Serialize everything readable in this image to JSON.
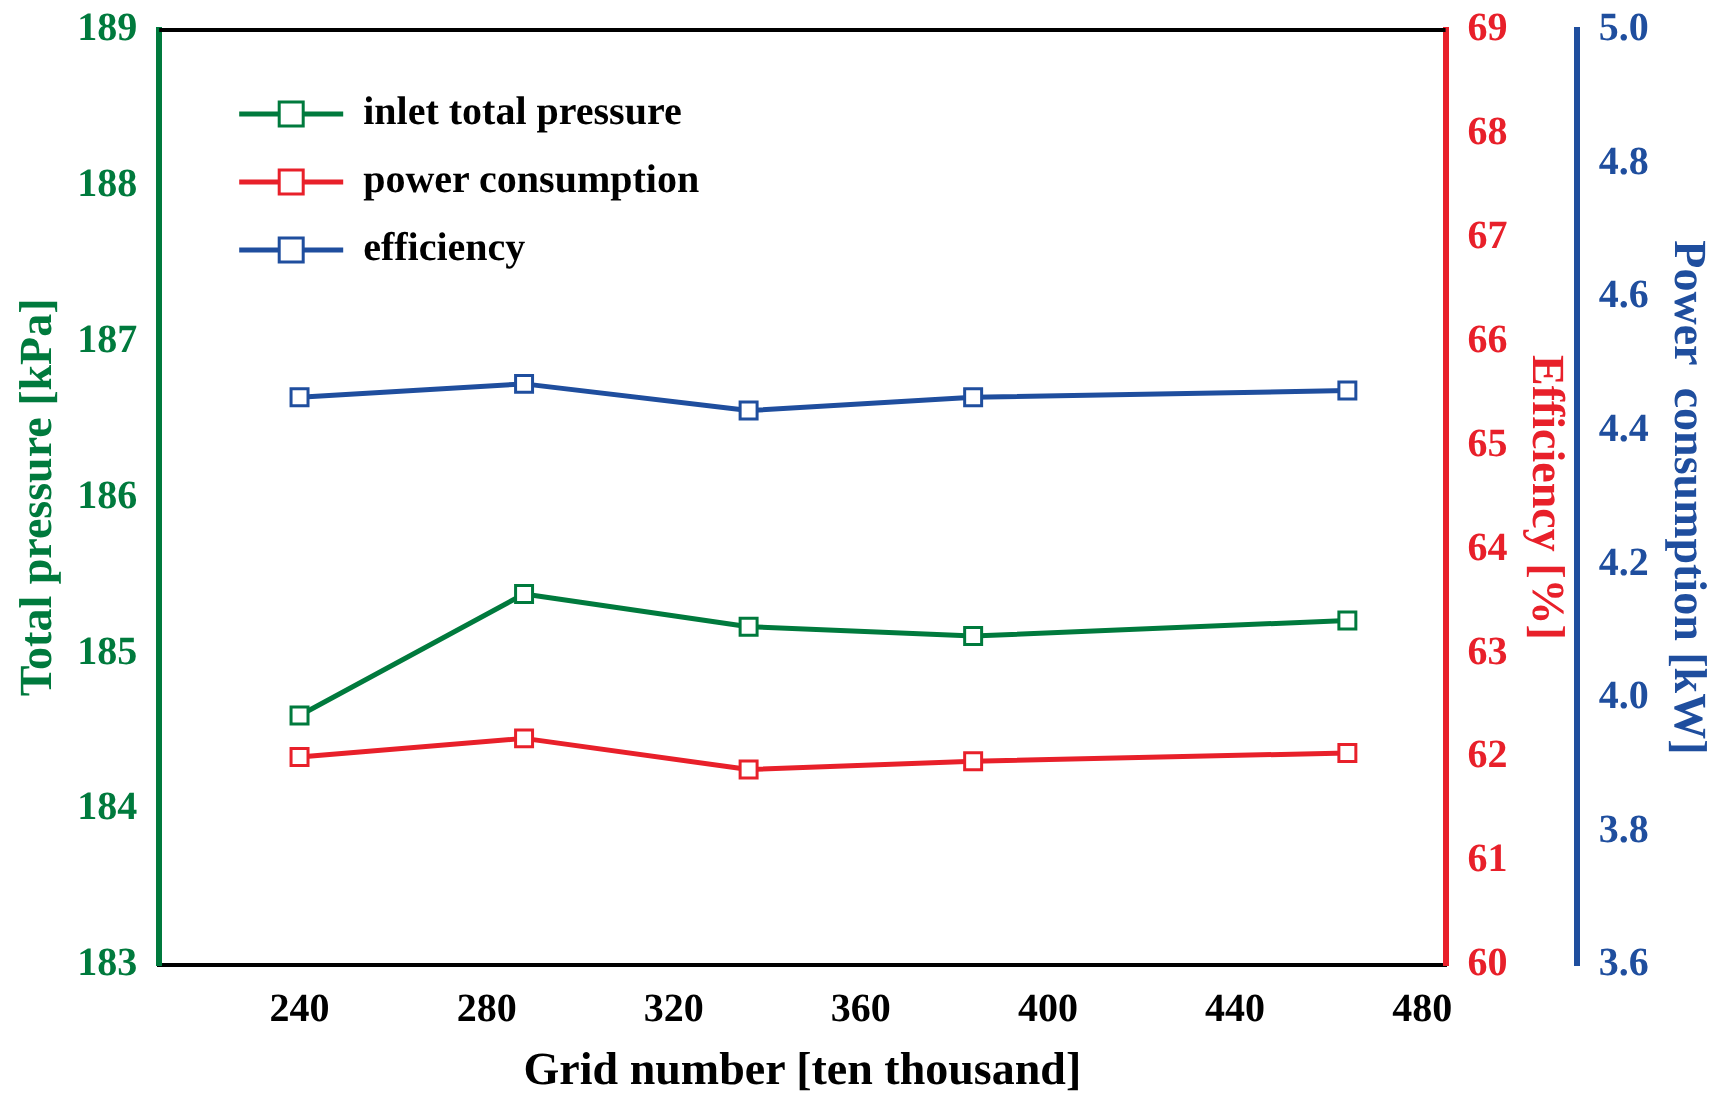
{
  "chart_data": {
    "type": "line",
    "xlabel": "Grid number [ten thousand]",
    "ylabel": "Total pressure [kPa]",
    "y2label": "Efficiency [%]",
    "y3label": "Power  consumption [kW]",
    "x": [
      240,
      288,
      336,
      384,
      464
    ],
    "xlim": [
      210,
      485
    ],
    "xticks": [
      240,
      280,
      320,
      360,
      400,
      440,
      480
    ],
    "ylim": [
      183,
      189
    ],
    "yticks": [
      183,
      184,
      185,
      186,
      187,
      188,
      189
    ],
    "y2lim": [
      60,
      69
    ],
    "y2ticks": [
      60,
      61,
      62,
      63,
      64,
      65,
      66,
      67,
      68,
      69
    ],
    "y3lim": [
      3.6,
      5.0
    ],
    "y3ticks": [
      3.6,
      3.8,
      {
        "value": 4,
        "label": "4.0"
      },
      4.2,
      4.4,
      4.6,
      4.8,
      {
        "value": 5,
        "label": "5.0"
      }
    ],
    "series": [
      {
        "name": "inlet total pressure",
        "color": "#007a3d",
        "values": [
          184.6,
          185.38,
          185.17,
          185.11,
          185.21
        ]
      },
      {
        "name": "power consumption",
        "color": "#e8202a",
        "axis": "y2",
        "values": [
          62.0,
          62.18,
          61.88,
          61.96,
          62.04
        ]
      },
      {
        "name": "efficiency",
        "color": "#1f4e9e",
        "axis": "y3",
        "values": [
          4.45,
          4.47,
          4.43,
          4.45,
          4.46
        ]
      }
    ],
    "marker": "square",
    "legend": "top left",
    "grid": false
  }
}
